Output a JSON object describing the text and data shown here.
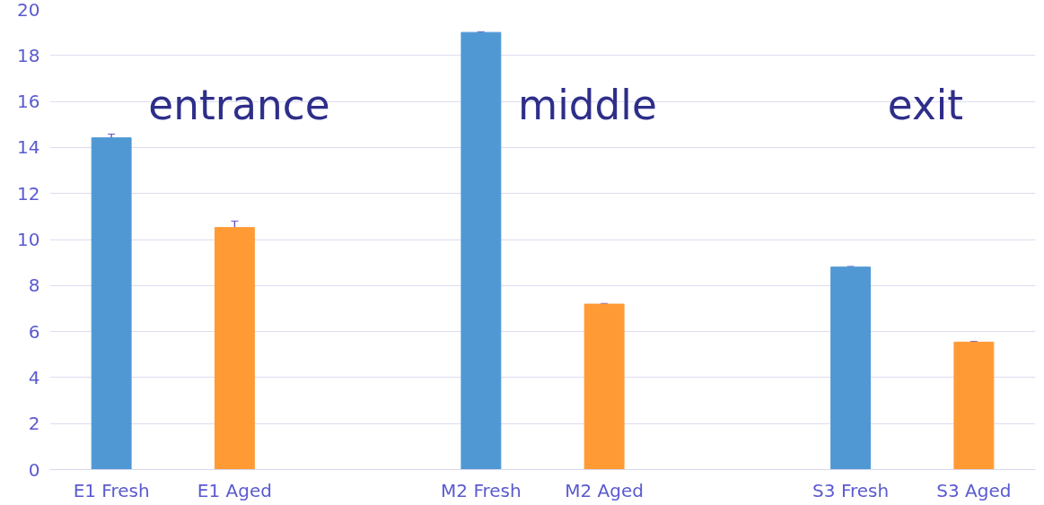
{
  "chart_data": {
    "type": "bar",
    "categories": [
      "E1 Fresh",
      "E1 Aged",
      null,
      "M2 Fresh",
      "M2 Aged",
      null,
      "S3 Fresh",
      "S3 Aged"
    ],
    "values": [
      14.42,
      10.52,
      null,
      19.0,
      7.19,
      null,
      8.8,
      5.54
    ],
    "errors": [
      0.16,
      0.28,
      null,
      0.03,
      0.03,
      null,
      0.03,
      0.03
    ],
    "colors": [
      "#4f98d4",
      "#ff9a35",
      null,
      "#4f98d4",
      "#ff9a35",
      null,
      "#4f98d4",
      "#ff9a35"
    ],
    "annotations": [
      "entrance",
      "middle",
      "exit"
    ],
    "ylim": [
      0,
      20
    ],
    "yticks": [
      0,
      2,
      4,
      6,
      8,
      10,
      12,
      14,
      16,
      18,
      20
    ],
    "grid": "y"
  }
}
